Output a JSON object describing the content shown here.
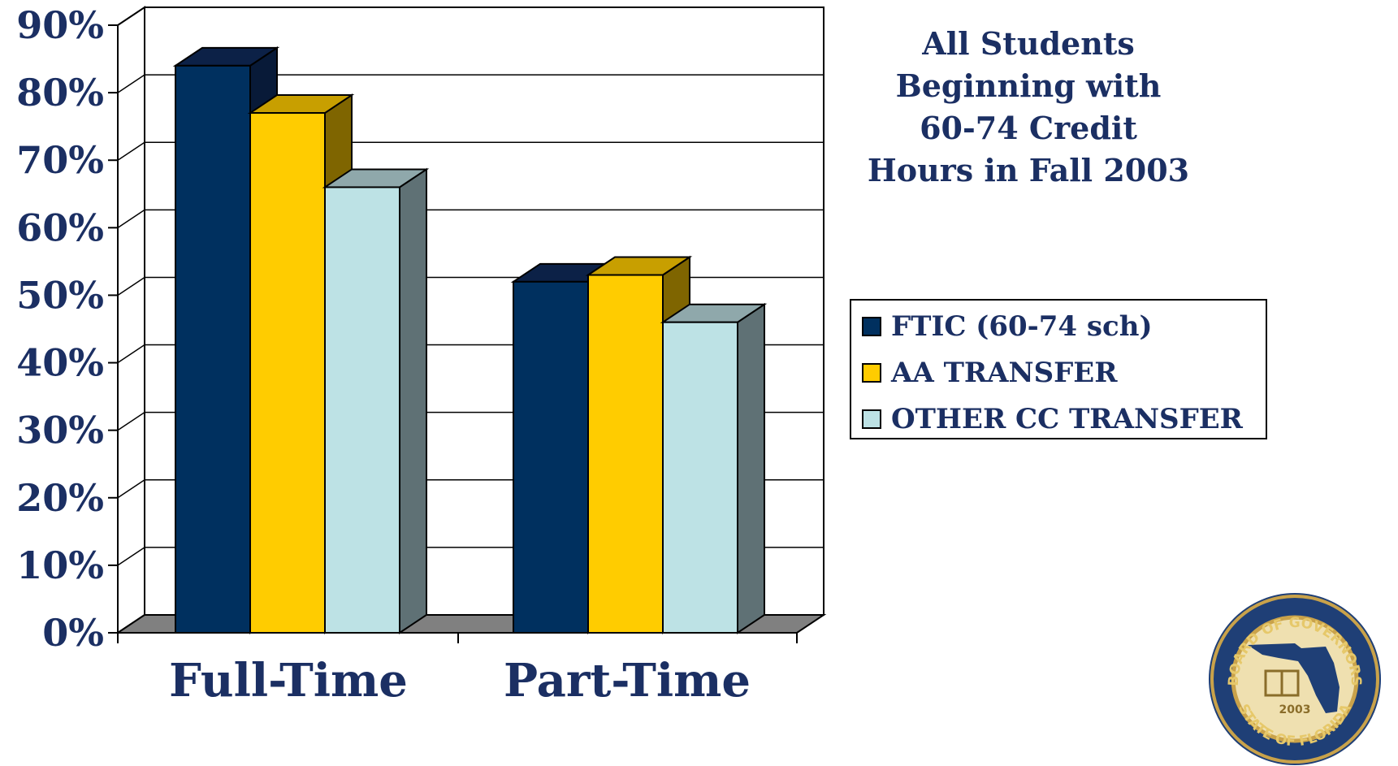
{
  "chart_data": {
    "type": "bar",
    "title_lines": [
      "All Students",
      "Beginning with",
      "60-74 Credit",
      "Hours in Fall 2003"
    ],
    "categories": [
      "Full-Time",
      "Part-Time"
    ],
    "series": [
      {
        "name": "FTIC (60-74 sch)",
        "values": [
          84,
          52
        ],
        "color": "#00305f",
        "top_color": "#0c2147",
        "side_color": "#081a38"
      },
      {
        "name": "AA TRANSFER",
        "values": [
          77,
          53
        ],
        "color": "#ffcc00",
        "top_color": "#c89f00",
        "side_color": "#7f6500"
      },
      {
        "name": "OTHER CC TRANSFER",
        "values": [
          66,
          46
        ],
        "color": "#bde2e5",
        "top_color": "#8fa8ab",
        "side_color": "#5f7175"
      }
    ],
    "yticks": [
      "0%",
      "10%",
      "20%",
      "30%",
      "40%",
      "50%",
      "60%",
      "70%",
      "80%",
      "90%"
    ],
    "ylim": [
      0,
      90
    ],
    "grid": true,
    "legend_position": "right",
    "text_color": "#1b2f63",
    "floor_color": "#808080"
  },
  "logo": {
    "name": "board-of-governors-seal",
    "top_text": "BOARD OF GOVERNORS",
    "bottom_text": "STATE OF FLORIDA",
    "year": "2003"
  }
}
